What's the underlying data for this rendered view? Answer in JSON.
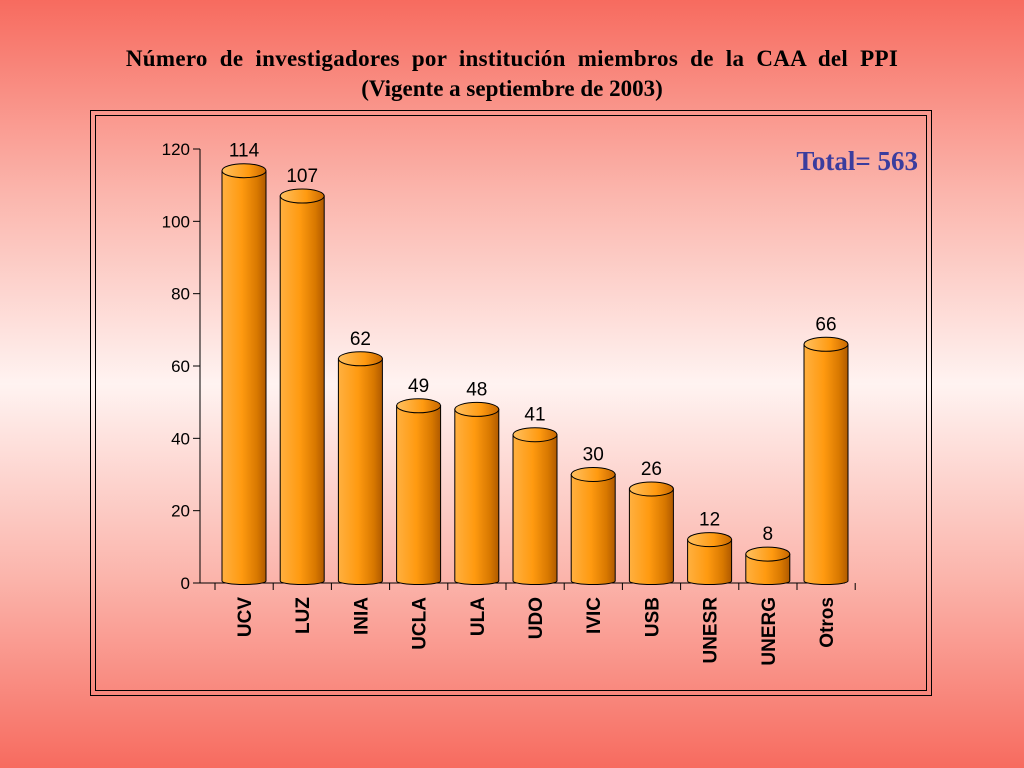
{
  "title": {
    "line1": "Número de investigadores por institución miembros de la CAA del PPI",
    "line2": "(Vigente a septiembre de 2003)"
  },
  "annotation": "Total= 563",
  "colors": {
    "bar_front": "#ff9a10",
    "bar_side": "#b05a00",
    "annotation": "#3b3d9e"
  },
  "chart_data": {
    "type": "bar",
    "categories": [
      "UCV",
      "LUZ",
      "INIA",
      "UCLA",
      "ULA",
      "UDO",
      "IVIC",
      "USB",
      "UNESR",
      "UNERG",
      "Otros"
    ],
    "values": [
      114,
      107,
      62,
      49,
      48,
      41,
      30,
      26,
      12,
      8,
      66
    ],
    "data_labels": [
      "114",
      "107",
      "62",
      "49",
      "48",
      "41",
      "30",
      "26",
      "12",
      "8",
      "66"
    ],
    "ylim": [
      0,
      120
    ],
    "yticks": [
      0,
      20,
      40,
      60,
      80,
      100,
      120
    ],
    "grid": false,
    "legend": "none",
    "style": "3d-cylinder"
  }
}
